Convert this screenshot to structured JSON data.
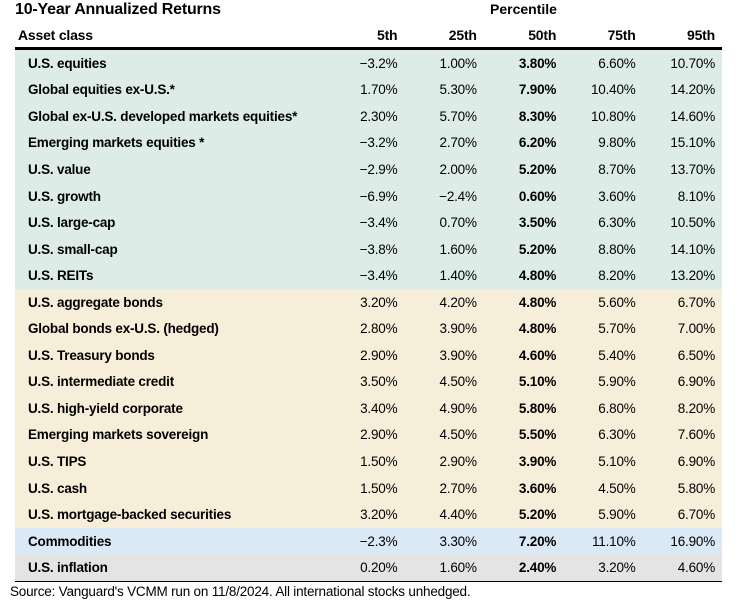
{
  "title": "10-Year Annualized Returns",
  "percentile_group_label": "Percentile",
  "source_note": "Source: Vanguard's VCMM run on 11/8/2024. All international stocks unhedged.",
  "colors": {
    "equities_bg": "#ddece7",
    "bonds_bg": "#f7eed9",
    "commodities_bg": "#dbe8f6",
    "inflation_bg": "#e4e4e4",
    "rule": "#000000"
  },
  "chart_data": {
    "type": "table",
    "title": "10-Year Annualized Returns",
    "column_group_label": "Percentile",
    "columns": [
      "Asset class",
      "5th",
      "25th",
      "50th",
      "75th",
      "95th"
    ],
    "bold_column": "50th",
    "rows": [
      {
        "asset_class": "U.S. equities",
        "group": "equities",
        "values": [
          "−3.2%",
          "1.00%",
          "3.80%",
          "6.60%",
          "10.70%"
        ]
      },
      {
        "asset_class": "Global equities ex-U.S.*",
        "group": "equities",
        "values": [
          "1.70%",
          "5.30%",
          "7.90%",
          "10.40%",
          "14.20%"
        ]
      },
      {
        "asset_class": "Global ex-U.S. developed markets equities*",
        "group": "equities",
        "values": [
          "2.30%",
          "5.70%",
          "8.30%",
          "10.80%",
          "14.60%"
        ]
      },
      {
        "asset_class": "Emerging markets equities *",
        "group": "equities",
        "values": [
          "−3.2%",
          "2.70%",
          "6.20%",
          "9.80%",
          "15.10%"
        ]
      },
      {
        "asset_class": "U.S. value",
        "group": "equities",
        "values": [
          "−2.9%",
          "2.00%",
          "5.20%",
          "8.70%",
          "13.70%"
        ]
      },
      {
        "asset_class": "U.S. growth",
        "group": "equities",
        "values": [
          "−6.9%",
          "−2.4%",
          "0.60%",
          "3.60%",
          "8.10%"
        ]
      },
      {
        "asset_class": "U.S. large-cap",
        "group": "equities",
        "values": [
          "−3.4%",
          "0.70%",
          "3.50%",
          "6.30%",
          "10.50%"
        ]
      },
      {
        "asset_class": "U.S. small-cap",
        "group": "equities",
        "values": [
          "−3.8%",
          "1.60%",
          "5.20%",
          "8.80%",
          "14.10%"
        ]
      },
      {
        "asset_class": "U.S. REITs",
        "group": "equities",
        "values": [
          "−3.4%",
          "1.40%",
          "4.80%",
          "8.20%",
          "13.20%"
        ]
      },
      {
        "asset_class": "U.S. aggregate bonds",
        "group": "bonds",
        "values": [
          "3.20%",
          "4.20%",
          "4.80%",
          "5.60%",
          "6.70%"
        ]
      },
      {
        "asset_class": "Global bonds ex-U.S. (hedged)",
        "group": "bonds",
        "values": [
          "2.80%",
          "3.90%",
          "4.80%",
          "5.70%",
          "7.00%"
        ]
      },
      {
        "asset_class": "U.S. Treasury bonds",
        "group": "bonds",
        "values": [
          "2.90%",
          "3.90%",
          "4.60%",
          "5.40%",
          "6.50%"
        ]
      },
      {
        "asset_class": "U.S. intermediate credit",
        "group": "bonds",
        "values": [
          "3.50%",
          "4.50%",
          "5.10%",
          "5.90%",
          "6.90%"
        ]
      },
      {
        "asset_class": "U.S. high-yield corporate",
        "group": "bonds",
        "values": [
          "3.40%",
          "4.90%",
          "5.80%",
          "6.80%",
          "8.20%"
        ]
      },
      {
        "asset_class": "Emerging markets sovereign",
        "group": "bonds",
        "values": [
          "2.90%",
          "4.50%",
          "5.50%",
          "6.30%",
          "7.60%"
        ]
      },
      {
        "asset_class": "U.S. TIPS",
        "group": "bonds",
        "values": [
          "1.50%",
          "2.90%",
          "3.90%",
          "5.10%",
          "6.90%"
        ]
      },
      {
        "asset_class": "U.S. cash",
        "group": "bonds",
        "values": [
          "1.50%",
          "2.70%",
          "3.60%",
          "4.50%",
          "5.80%"
        ]
      },
      {
        "asset_class": "U.S. mortgage-backed securities",
        "group": "bonds",
        "values": [
          "3.20%",
          "4.40%",
          "5.20%",
          "5.90%",
          "6.70%"
        ]
      },
      {
        "asset_class": "Commodities",
        "group": "commodities",
        "values": [
          "−2.3%",
          "3.30%",
          "7.20%",
          "11.10%",
          "16.90%"
        ]
      },
      {
        "asset_class": "U.S. inflation",
        "group": "inflation",
        "values": [
          "0.20%",
          "1.60%",
          "2.40%",
          "3.20%",
          "4.60%"
        ]
      }
    ]
  }
}
